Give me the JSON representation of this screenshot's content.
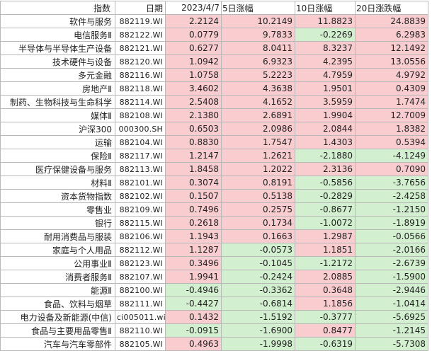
{
  "header": {
    "name": "指数",
    "code": "日期",
    "date": "2023/4/7",
    "d5": "5日涨幅",
    "d10": "10日涨幅",
    "d20": "20日涨跌幅"
  },
  "colors": {
    "positive": "#f9cdd0",
    "negative": "#d2efcf"
  },
  "rows": [
    {
      "name": "软件与服务",
      "code": "882119.WI",
      "date": "2.2124",
      "d5": "10.2149",
      "d10": "11.8823",
      "d20": "24.8839"
    },
    {
      "name": "电信服务Ⅱ",
      "code": "882122.WI",
      "date": "0.0779",
      "d5": "9.7833",
      "d10": "-0.2269",
      "d20": "6.2983"
    },
    {
      "name": "半导体与半导体生产设备",
      "code": "882121.WI",
      "date": "0.6277",
      "d5": "8.0411",
      "d10": "8.3237",
      "d20": "12.1492"
    },
    {
      "name": "技术硬件与设备",
      "code": "882120.WI",
      "date": "1.0942",
      "d5": "6.9323",
      "d10": "4.2395",
      "d20": "13.0556"
    },
    {
      "name": "多元金融",
      "code": "882116.WI",
      "date": "1.0758",
      "d5": "5.2223",
      "d10": "4.7959",
      "d20": "4.9792"
    },
    {
      "name": "房地产Ⅱ",
      "code": "882118.WI",
      "date": "3.4602",
      "d5": "4.3638",
      "d10": "1.9501",
      "d20": "0.4309"
    },
    {
      "name": "制药、生物科技与生命科学",
      "code": "882114.WI",
      "date": "2.5408",
      "d5": "4.1652",
      "d10": "3.5959",
      "d20": "1.7474"
    },
    {
      "name": "媒体Ⅱ",
      "code": "882108.WI",
      "date": "2.1380",
      "d5": "2.6891",
      "d10": "1.9904",
      "d20": "12.7009"
    },
    {
      "name": "沪深300",
      "code": "000300.SH",
      "date": "0.6503",
      "d5": "2.0986",
      "d10": "2.0844",
      "d20": "1.8382"
    },
    {
      "name": "运输",
      "code": "882104.WI",
      "date": "0.8830",
      "d5": "1.7547",
      "d10": "1.4303",
      "d20": "0.5394"
    },
    {
      "name": "保险Ⅱ",
      "code": "882117.WI",
      "date": "1.2147",
      "d5": "1.2621",
      "d10": "-2.1880",
      "d20": "-4.1249"
    },
    {
      "name": "医疗保健设备与服务",
      "code": "882113.WI",
      "date": "1.8458",
      "d5": "1.2022",
      "d10": "2.3136",
      "d20": "0.7090"
    },
    {
      "name": "材料Ⅱ",
      "code": "882101.WI",
      "date": "0.3074",
      "d5": "0.8191",
      "d10": "-0.5856",
      "d20": "-3.7656"
    },
    {
      "name": "资本货物指数",
      "code": "882102.WI",
      "date": "0.1507",
      "d5": "0.5138",
      "d10": "-0.2829",
      "d20": "-2.4258"
    },
    {
      "name": "零售业",
      "code": "882109.WI",
      "date": "0.7496",
      "d5": "0.2575",
      "d10": "-0.8677",
      "d20": "-1.2150"
    },
    {
      "name": "银行",
      "code": "882115.WI",
      "date": "0.2618",
      "d5": "0.1734",
      "d10": "-1.0072",
      "d20": "-1.8919"
    },
    {
      "name": "耐用消费品与服装",
      "code": "882106.WI",
      "date": "1.1943",
      "d5": "0.1663",
      "d10": "1.2987",
      "d20": "-0.0566"
    },
    {
      "name": "家庭与个人用品",
      "code": "882112.WI",
      "date": "1.1287",
      "d5": "-0.0573",
      "d10": "1.1851",
      "d20": "-2.0166"
    },
    {
      "name": "公用事业Ⅱ",
      "code": "882123.WI",
      "date": "0.3496",
      "d5": "-0.1045",
      "d10": "-1.2172",
      "d20": "-2.6739"
    },
    {
      "name": "消费者服务Ⅱ",
      "code": "882107.WI",
      "date": "1.9941",
      "d5": "-0.2424",
      "d10": "2.0885",
      "d20": "-1.5900"
    },
    {
      "name": "能源Ⅱ",
      "code": "882100.WI",
      "date": "-0.4946",
      "d5": "-0.3362",
      "d10": "0.3648",
      "d20": "-2.9446"
    },
    {
      "name": "食品、饮料与烟草",
      "code": "882111.WI",
      "date": "-0.4427",
      "d5": "-0.6814",
      "d10": "1.1856",
      "d20": "-1.0414"
    },
    {
      "name": "电力设备及新能源(中信)",
      "code": "ci005011.wi",
      "date": "0.1432",
      "d5": "-1.5192",
      "d10": "-0.3777",
      "d20": "-5.6925"
    },
    {
      "name": "食品与主要用品零售Ⅱ",
      "code": "882110.WI",
      "date": "-0.0915",
      "d5": "-1.6900",
      "d10": "0.8477",
      "d20": "-1.2145"
    },
    {
      "name": "汽车与汽车零部件",
      "code": "882105.WI",
      "date": "0.4963",
      "d5": "-1.9998",
      "d10": "-0.6319",
      "d20": "-5.7308"
    }
  ]
}
